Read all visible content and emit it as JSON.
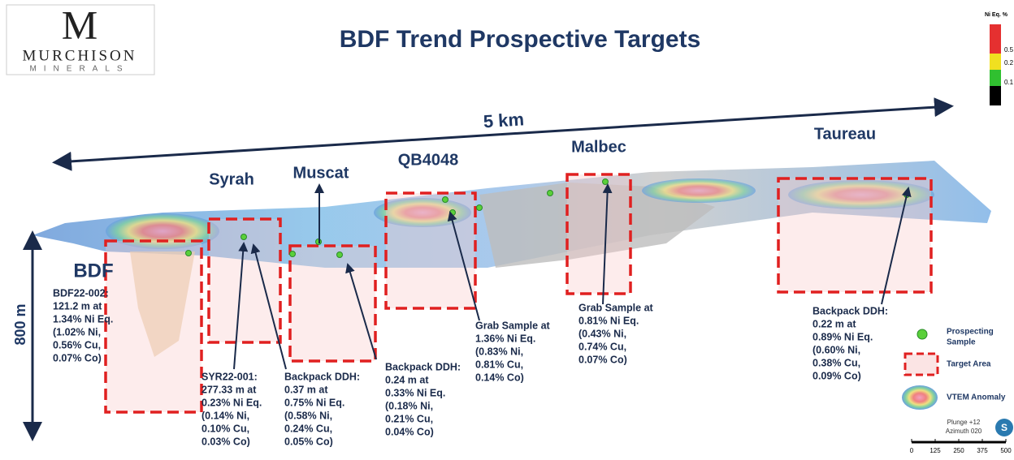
{
  "logo": {
    "mark": "M",
    "name": "MURCHISON",
    "sub": "MINERALS"
  },
  "title": "BDF Trend Prospective Targets",
  "color_scale": {
    "title": "Ni Eq. %",
    "labels": [
      "0.5",
      "0.2",
      "0.1"
    ]
  },
  "distance_label": "5 km",
  "depth_label": "800 m",
  "targets": [
    {
      "name": "BDF"
    },
    {
      "name": "Syrah"
    },
    {
      "name": "Muscat"
    },
    {
      "name": "QB4048"
    },
    {
      "name": "Malbec"
    },
    {
      "name": "Taureau"
    }
  ],
  "annotations": [
    {
      "lines": [
        "BDF22-002:",
        "121.2 m at",
        "1.34% Ni Eq.",
        "(1.02% Ni,",
        "0.56% Cu,",
        "0.07% Co)"
      ]
    },
    {
      "lines": [
        "SYR22-001:",
        "277.33 m at",
        "0.23% Ni Eq.",
        "(0.14% Ni,",
        "0.10% Cu,",
        "0.03% Co)"
      ]
    },
    {
      "lines": [
        "Backpack DDH:",
        "0.37 m at",
        "0.75% Ni Eq.",
        "(0.58% Ni,",
        "0.24% Cu,",
        "0.05% Co)"
      ]
    },
    {
      "lines": [
        "Backpack DDH:",
        "0.24 m at",
        "0.33% Ni Eq.",
        "(0.18% Ni,",
        "0.21% Cu,",
        "0.04% Co)"
      ]
    },
    {
      "lines": [
        "Grab Sample at",
        "1.36% Ni Eq.",
        "(0.83% Ni,",
        "0.81% Cu,",
        "0.14% Co)"
      ]
    },
    {
      "lines": [
        "Grab Sample at",
        "0.81% Ni Eq.",
        "(0.43% Ni,",
        "0.74% Cu,",
        "0.07% Co)"
      ]
    },
    {
      "lines": [
        "Backpack DDH:",
        "0.22 m at",
        "0.89% Ni Eq.",
        "(0.60% Ni,",
        "0.38% Cu,",
        "0.09% Co)"
      ]
    }
  ],
  "legend": {
    "sample": [
      "Prospecting",
      "Sample"
    ],
    "target": "Target Area",
    "vtem": "VTEM Anomaly"
  },
  "view": {
    "plunge": "Plunge +12",
    "azimuth": "Azimuth 020",
    "compass": "S"
  },
  "scale_bar": [
    "0",
    "125",
    "250",
    "375",
    "500"
  ]
}
